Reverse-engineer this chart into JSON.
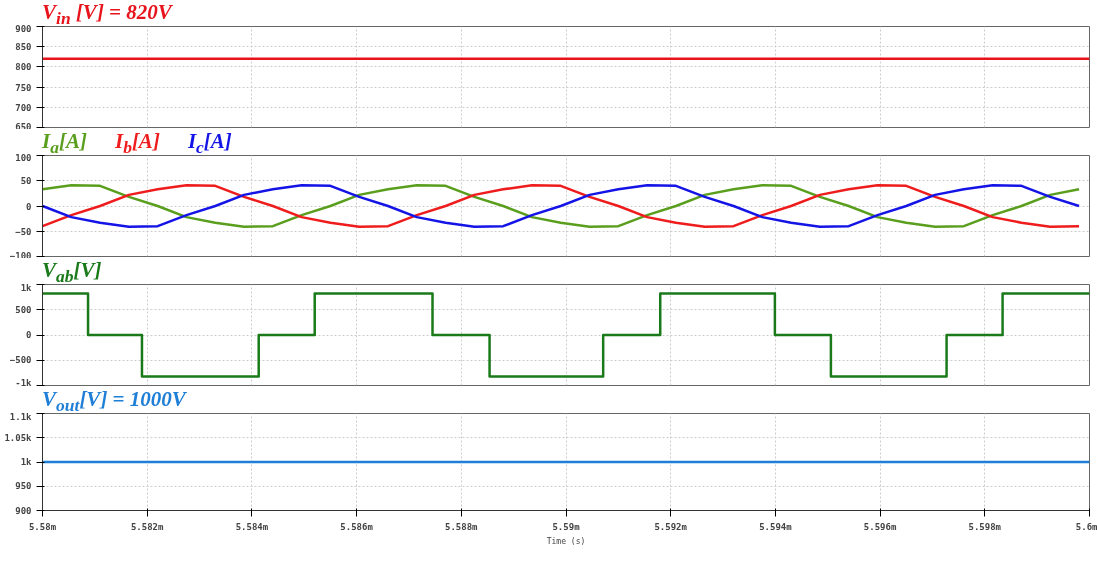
{
  "chart_data": [
    {
      "type": "line",
      "title": "V$_{in}$ [V] = 820V",
      "x": [
        5.58,
        5.6
      ],
      "xlim": [
        5.58,
        5.6
      ],
      "ylim": [
        650,
        900
      ],
      "yticks": [
        650,
        700,
        750,
        800,
        850,
        900
      ],
      "grid": true,
      "tick_labels": "y",
      "series": [
        {
          "color": "#e8141c",
          "values": [
            820,
            820
          ]
        }
      ]
    },
    {
      "type": "line",
      "x": [
        5.58,
        5.58055,
        5.5811,
        5.58165,
        5.5822,
        5.58275,
        5.5833,
        5.58385,
        5.5844,
        5.58495,
        5.5855,
        5.58605,
        5.5866,
        5.58715,
        5.5877,
        5.58825,
        5.5888,
        5.58935,
        5.5899,
        5.59045,
        5.591,
        5.59155,
        5.5921,
        5.59265,
        5.5932,
        5.59375,
        5.5943,
        5.59485,
        5.5954,
        5.59595,
        5.5965,
        5.59705,
        5.5976,
        5.59815,
        5.5987,
        5.59925,
        5.5998
      ],
      "xlim": [
        5.58,
        5.6
      ],
      "ylim": [
        -100,
        100
      ],
      "yticks": [
        -100,
        -50,
        0,
        50,
        100
      ],
      "grid": true,
      "tick_labels": "y",
      "series": [
        {
          "name": "I$_{a}$[A]",
          "color": "#5a9e1e",
          "values": [
            33,
            41,
            40,
            18,
            0,
            -22,
            -33,
            -41,
            -40,
            -18,
            0,
            22,
            33,
            41,
            40,
            18,
            0,
            -22,
            -33,
            -41,
            -40,
            -18,
            0,
            22,
            33,
            41,
            40,
            18,
            0,
            -22,
            -33,
            -41,
            -40,
            -18,
            0,
            22,
            33
          ]
        },
        {
          "name": "I$_{b}$[A]",
          "color": "#ee1c1c",
          "values": [
            -40,
            -18,
            0,
            22,
            33,
            41,
            40,
            18,
            0,
            -22,
            -33,
            -41,
            -40,
            -18,
            0,
            22,
            33,
            41,
            40,
            18,
            0,
            -22,
            -33,
            -41,
            -40,
            -18,
            0,
            22,
            33,
            41,
            40,
            18,
            0,
            -22,
            -33,
            -41,
            -40
          ]
        },
        {
          "name": "I$_{c}$[A]",
          "color": "#1414e6",
          "values": [
            0,
            -22,
            -33,
            -41,
            -40,
            -18,
            0,
            22,
            33,
            41,
            40,
            18,
            0,
            -22,
            -33,
            -41,
            -40,
            -18,
            0,
            22,
            33,
            41,
            40,
            18,
            0,
            -22,
            -33,
            -41,
            -40,
            -18,
            0,
            22,
            33,
            41,
            40,
            18,
            0
          ]
        }
      ]
    },
    {
      "type": "step",
      "title": "V$_{ab}$[V]",
      "x": [
        5.58,
        5.58087,
        5.5819,
        5.58413,
        5.5852,
        5.58745,
        5.58854,
        5.59071,
        5.5918,
        5.59399,
        5.59506,
        5.59727,
        5.59834,
        5.6
      ],
      "xlim": [
        5.58,
        5.6
      ],
      "ylim": [
        -1000,
        1000
      ],
      "yticks": [
        {
          "value": -1000,
          "label": "-1k"
        },
        -500,
        0,
        500,
        {
          "value": 1000,
          "label": "1k"
        }
      ],
      "grid": true,
      "tick_labels": "y",
      "series": [
        {
          "color": "#1a7a1a",
          "values": [
            820,
            0,
            -820,
            0,
            820,
            0,
            -820,
            0,
            820,
            0,
            -820,
            0,
            820,
            820
          ]
        }
      ]
    },
    {
      "type": "line",
      "title": "V$_{out}$[V] = 1000V",
      "xlabel": "Time (s)",
      "x": [
        5.58,
        5.6
      ],
      "xlim": [
        5.58,
        5.6
      ],
      "xticks": [
        {
          "value": 5.58,
          "label": "5.58m"
        },
        {
          "value": 5.582,
          "label": "5.582m"
        },
        {
          "value": 5.584,
          "label": "5.584m"
        },
        {
          "value": 5.586,
          "label": "5.586m"
        },
        {
          "value": 5.588,
          "label": "5.588m"
        },
        {
          "value": 5.59,
          "label": "5.59m"
        },
        {
          "value": 5.592,
          "label": "5.592m"
        },
        {
          "value": 5.594,
          "label": "5.594m"
        },
        {
          "value": 5.596,
          "label": "5.596m"
        },
        {
          "value": 5.598,
          "label": "5.598m"
        },
        {
          "value": 5.6,
          "label": "5.6m"
        }
      ],
      "ylim": [
        900,
        1100
      ],
      "yticks": [
        900,
        950,
        {
          "value": 1000,
          "label": "1k"
        },
        {
          "value": 1050,
          "label": "1.05k"
        },
        {
          "value": 1100,
          "label": "1.1k"
        }
      ],
      "grid": true,
      "series": [
        {
          "color": "#1f7fd6",
          "values": [
            1000,
            1000
          ]
        }
      ]
    }
  ]
}
